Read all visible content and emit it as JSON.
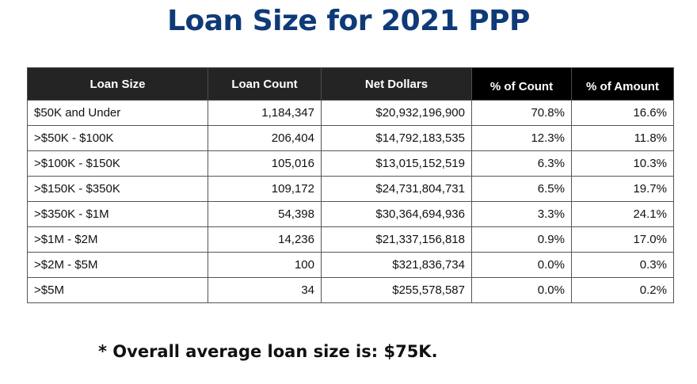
{
  "title": "Loan Size for 2021 PPP",
  "table": {
    "headers": [
      "Loan Size",
      "Loan Count",
      "Net Dollars",
      "% of Count",
      "% of Amount"
    ],
    "rows": [
      [
        "$50K and Under",
        "1,184,347",
        "$20,932,196,900",
        "70.8%",
        "16.6%"
      ],
      [
        ">$50K - $100K",
        "206,404",
        "$14,792,183,535",
        "12.3%",
        "11.8%"
      ],
      [
        ">$100K - $150K",
        "105,016",
        "$13,015,152,519",
        "6.3%",
        "10.3%"
      ],
      [
        ">$150K - $350K",
        "109,172",
        "$24,731,804,731",
        "6.5%",
        "19.7%"
      ],
      [
        ">$350K - $1M",
        "54,398",
        "$30,364,694,936",
        "3.3%",
        "24.1%"
      ],
      [
        ">$1M - $2M",
        "14,236",
        "$21,337,156,818",
        "0.9%",
        "17.0%"
      ],
      [
        ">$2M - $5M",
        "100",
        "$321,836,734",
        "0.0%",
        "0.3%"
      ],
      [
        ">$5M",
        "34",
        "$255,578,587",
        "0.0%",
        "0.2%"
      ]
    ]
  },
  "footnote": "* Overall average loan size is: $75K."
}
